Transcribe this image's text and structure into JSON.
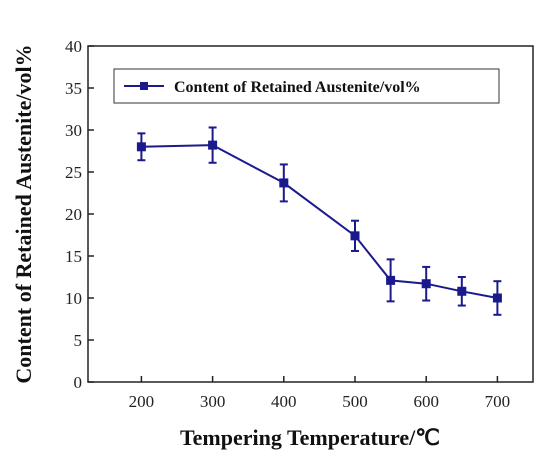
{
  "chart_data": {
    "type": "line",
    "xlabel": "Tempering Temperature/℃",
    "ylabel": "Content of Retained Austenite/vol%",
    "xlim": [
      125,
      750
    ],
    "ylim": [
      0,
      40
    ],
    "x_ticks": [
      200,
      300,
      400,
      500,
      600,
      700
    ],
    "y_ticks": [
      0,
      5,
      10,
      15,
      20,
      25,
      30,
      35,
      40
    ],
    "grid": false,
    "legend_position": "top-left",
    "series": [
      {
        "name": "Content of Retained Austenite/vol%",
        "color": "#1a1a8c",
        "marker": "square",
        "x": [
          200,
          300,
          400,
          500,
          550,
          600,
          650,
          700
        ],
        "y": [
          28.0,
          28.2,
          23.7,
          17.4,
          12.1,
          11.7,
          10.8,
          10.0
        ],
        "error": [
          1.6,
          2.1,
          2.2,
          1.8,
          2.5,
          2.0,
          1.7,
          2.0
        ]
      }
    ]
  }
}
